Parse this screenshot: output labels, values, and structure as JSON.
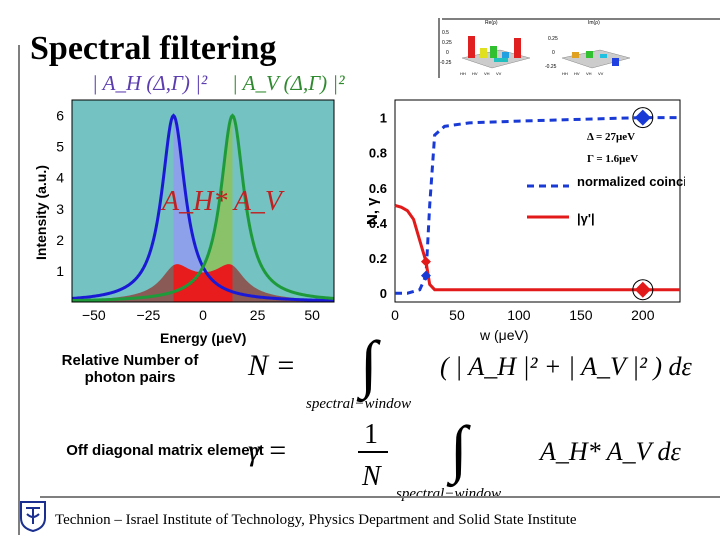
{
  "slide": {
    "title": "Spectral filtering",
    "footer": "Technion – Israel Institute of Technology, Physics Department and Solid State Institute"
  },
  "left_plot": {
    "xlabel": "Energy (μeV)",
    "ylabel": "Intensity (a.u.)",
    "xticks": [
      "−50",
      "−25",
      "0",
      "25",
      "50"
    ],
    "yticks": [
      "1",
      "2",
      "3",
      "4",
      "5",
      "6"
    ],
    "label_AH": "| A_H (Δ,Γ) |²",
    "label_AV": "| A_V (Δ,Γ) |²",
    "label_product": "A_H* A_V"
  },
  "right_plot": {
    "xlabel": "w (μeV)",
    "ylabel": "N, γ",
    "xticks": [
      "0",
      "50",
      "100",
      "150",
      "200"
    ],
    "yticks": [
      "0",
      "0.2",
      "0.4",
      "0.6",
      "0.8",
      "1"
    ],
    "params_delta": "Δ = 27μeV",
    "params_gamma": "Γ = 1.6μeV",
    "legend_1": "normalized coincidences",
    "legend_2": "|γ'|"
  },
  "inset": {
    "re_title": "Re(ρ)",
    "im_title": "Im(ρ)",
    "ticks_re": [
      "0.5",
      "0.25",
      "0",
      "-0.25"
    ],
    "ticks_im": [
      "0.25",
      "0",
      "-0.25"
    ],
    "basis": [
      "HH",
      "HV",
      "VH",
      "VV"
    ]
  },
  "equations": {
    "N_label": "Relative Number of photon pairs",
    "gamma_label": "Off diagonal matrix element",
    "N_lhs": "N =",
    "gamma_lhs": "γ =",
    "gamma_frac_num": "1",
    "gamma_frac_den": "N",
    "N_integrand": "( | A_H |² + | A_V |² ) dε",
    "gamma_integrand": "A_H* A_V  dε",
    "subscript": "spectral−window"
  },
  "chart_data": [
    {
      "type": "line",
      "title": "",
      "xlabel": "Energy (μeV)",
      "ylabel": "Intensity (a.u.)",
      "xlim": [
        -60,
        60
      ],
      "ylim": [
        0,
        6.5
      ],
      "series": [
        {
          "name": "|A_H(Δ,Γ)|²",
          "center": -13.5,
          "peak": 6.0,
          "color": "#1a1ad6"
        },
        {
          "name": "|A_V(Δ,Γ)|²",
          "center": 13.5,
          "peak": 6.0,
          "color": "#1e9a3a"
        },
        {
          "name": "A_H* A_V",
          "peak": 1.6,
          "color": "#e21a1a"
        }
      ],
      "spectral_window": [
        -13.5,
        13.5
      ]
    },
    {
      "type": "line",
      "title": "",
      "xlabel": "w (μeV)",
      "ylabel": "N, γ",
      "xlim": [
        0,
        230
      ],
      "ylim": [
        -0.05,
        1.1
      ],
      "series": [
        {
          "name": "normalized coincidences",
          "x": [
            0,
            10,
            20,
            25,
            28,
            32,
            40,
            60,
            100,
            150,
            200,
            230
          ],
          "y": [
            0.0,
            0.0,
            0.02,
            0.1,
            0.5,
            0.9,
            0.95,
            0.97,
            0.98,
            0.99,
            1.0,
            1.0
          ],
          "color": "#1a3ad6",
          "style": "dashed"
        },
        {
          "name": "|γ'|",
          "x": [
            0,
            5,
            10,
            15,
            20,
            25,
            28,
            32,
            40,
            60,
            100,
            150,
            200,
            230
          ],
          "y": [
            0.5,
            0.49,
            0.47,
            0.42,
            0.3,
            0.18,
            0.05,
            0.02,
            0.02,
            0.02,
            0.02,
            0.02,
            0.02,
            0.02
          ],
          "color": "#e21a1a",
          "style": "solid"
        }
      ],
      "markers": [
        {
          "series": "normalized coincidences",
          "x": 25,
          "y": 0.1,
          "color": "#1a3ad6"
        },
        {
          "series": "normalized coincidences",
          "x": 200,
          "y": 1.0,
          "color": "#1a3ad6"
        },
        {
          "series": "|γ'|",
          "x": 25,
          "y": 0.18,
          "color": "#e21a1a"
        },
        {
          "series": "|γ'|",
          "x": 200,
          "y": 0.02,
          "color": "#e21a1a"
        }
      ]
    }
  ]
}
